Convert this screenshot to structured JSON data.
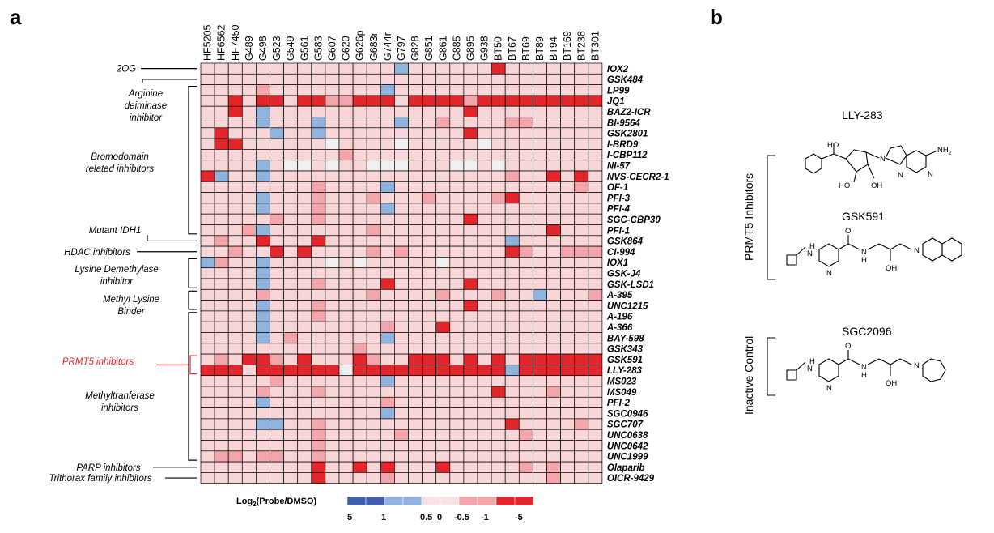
{
  "panels": {
    "a": "a",
    "b": "b"
  },
  "columns": [
    "HF5205",
    "HF6562",
    "HF7450",
    "G489",
    "G498",
    "G523",
    "G549",
    "G561",
    "G583",
    "G607",
    "G620",
    "G626p",
    "G683r",
    "G744r",
    "G797",
    "G828",
    "G851",
    "G861",
    "G885",
    "G895",
    "G938",
    "BT50",
    "BT67",
    "BT69",
    "BT89",
    "BT94",
    "BT169",
    "BT238",
    "BT301"
  ],
  "rows": [
    "IOX2",
    "GSK484",
    "LP99",
    "JQ1",
    "BAZ2-ICR",
    "BI-9564",
    "GSK2801",
    "I-BRD9",
    "I-CBP112",
    "NI-57",
    "NVS-CECR2-1",
    "OF-1",
    "PFI-3",
    "PFI-4",
    "SGC-CBP30",
    "PFI-1",
    "GSK864",
    "CI-994",
    "IOX1",
    "GSK-J4",
    "GSK-LSD1",
    "A-395",
    "UNC1215",
    "A-196",
    "A-366",
    "BAY-598",
    "GSK343",
    "GSK591",
    "LLY-283",
    "MS023",
    "MS049",
    "PFI-2",
    "SGC0946",
    "SGC707",
    "UNC0638",
    "UNC0642",
    "UNC1999",
    "Olaparib",
    "OICR-9429"
  ],
  "groups": [
    {
      "label": [
        "2OG"
      ],
      "highlight": false
    },
    {
      "label": [
        "Arginine",
        "deiminase",
        "inhibitor"
      ],
      "highlight": false
    },
    {
      "label": [
        "Bromodomain",
        "related inhibitors"
      ],
      "highlight": false
    },
    {
      "label": [
        "Mutant IDH1"
      ],
      "highlight": false
    },
    {
      "label": [
        "HDAC inhibitors"
      ],
      "highlight": false
    },
    {
      "label": [
        "Lysine Demethylase",
        "inhibitor"
      ],
      "highlight": false
    },
    {
      "label": [
        "Methyl Lysine",
        "Binder"
      ],
      "highlight": false
    },
    {
      "label": [
        "PRMT5 inhibitors"
      ],
      "highlight": true
    },
    {
      "label": [
        "Methyltranferase",
        "inhibitors"
      ],
      "highlight": false
    },
    {
      "label": [
        "PARP inhibitors"
      ],
      "highlight": false
    },
    {
      "label": [
        "Trithorax family inhibitors"
      ],
      "highlight": false
    }
  ],
  "legend": {
    "title_main": "Log",
    "title_sub": "2",
    "title_rest": "(Probe/DMSO)",
    "ticks": [
      "5",
      "1",
      "0.5",
      "0",
      "-0.5",
      "-1",
      "-5"
    ],
    "colors": [
      "#3f5fae",
      "#8fb3dc",
      "#f8e3e4",
      "#f3a5ab",
      "#e2262b"
    ]
  },
  "heatmap": {
    "color_levels": {
      "B": "#8fb3dc",
      "W": "#f0efef",
      "P": "#f8d5d6",
      "M": "#f3a5ab",
      "R": "#e2262b"
    },
    "cells": [
      "PPPPPPPPPPPPPPBPPPPPPRPPPPPPP",
      "PPPPPPPPPPPPPPPPPPPPPPPPPPPPP",
      "PPPPMPPPPPPPPBPPPPPPPPPPPPPPP",
      "PPRPRRPRRMMRRRPRRRRMRRRRRRRRR",
      "PPRPBPPPPPPPPPPPPPPRPPPPPPPPP",
      "PPPPBPPPBPPPPPBPPMPPPPMMPPPPP",
      "PRPPPBPPBPPPPPPPPPPRPPPPPPPPP",
      "PRRPPPPPPWPPPPWPPPPPWPPPPPPPP",
      "PPPPPPPPPPMPPPPPPPPPPPPPPPPPP",
      "PPPPBPWWPWPPWWWPPPWWPWPPPPPPP",
      "RBPPBPPPPPPPPPPPPPPPPPMPPRPRP",
      "PPPPPPPPMPPPPBPPPPPPPPPPPPPMP",
      "PPPPBPPPMPPPMPPPMPPPPMRPPPPPP",
      "PPPPBPPPMPPPPBPPPPPPPPPPPPPPP",
      "PPPPPMPPMPPPPPPPPPPRPPPPPPPPP",
      "PPPMBPPPPPPPMPPPPPPPPPPPPRPPP",
      "PMPPRPPPRPPPPPPPPPPPPPBPPPPPP",
      "PPMPPRPRPPPPMPMPPPPPPPRMPPMMM",
      "BMPPBPPPPWPWPPPPPWPPPPPPPPPPP",
      "PPPPBPPPPPPPPPPPPPPPPPPPPPPPP",
      "PPPPBPPPMPPPPRPPPPPRPPPPPPPPP",
      "PPPPMPPPPPPPMPPPPMPPPMPPBPPPM",
      "PPPPBPPPMPPPPPPPPPPRPPPPPPPPP",
      "PPPPBPPPMPPPPPPPPPPPPPPPPPPPP",
      "PPPPBPPPPPPPPMPPPRPPPPPPPPPPP",
      "PPPPBPMPPPPPPBPPPPPPPPPPPPPPP",
      "PPPPPPPPPPPMPPPPPPPPPPPPPPPPP",
      "PMPRRMPRPPPRMPPRRRPRPRPRRRRRR",
      "RRRPRRRRRRWRRRRRRRRRRRBRRRRRR",
      "PPPPPMPPPPPPPBPPPPPPPPPPPPPPP",
      "PPPPMPPPMPPPPPPPPPPPPRPPPMPPP",
      "PPPPBPPPPPPPPMPPPPPPPPPPPPPPP",
      "PPPPPPPPPPPPPBPPPPPPPPPPPPPPP",
      "PPPPBBPPMPPPPPPPPPPPPPRPPPPMP",
      "PPPPPPPPMPPPPPMPPPPPPPPMPPPPP",
      "PPPPPPPPMPPPPPPPPPPPPPPPPPPPP",
      "PMMPMMPPMPPPPPPPPPPPPPPPPPPPP",
      "PPPPPPPPRPPRPRPPPRPPPPPMPMPPP",
      "PPPPPPPPRPPPPMPPPPPPPPPPPMPPP"
    ]
  },
  "structures": [
    {
      "name": "LLY-283"
    },
    {
      "name": "GSK591"
    },
    {
      "name": "SGC2096"
    }
  ],
  "atom_labels": {
    "ho": "HO",
    "oh": "OH",
    "nh2": "NH",
    "nh2_sub": "2",
    "n": "N",
    "h": "H",
    "o": "O"
  },
  "side_labels": {
    "prmt5": "PRMT5 Inhibitors",
    "inactive": "Inactive Control"
  }
}
